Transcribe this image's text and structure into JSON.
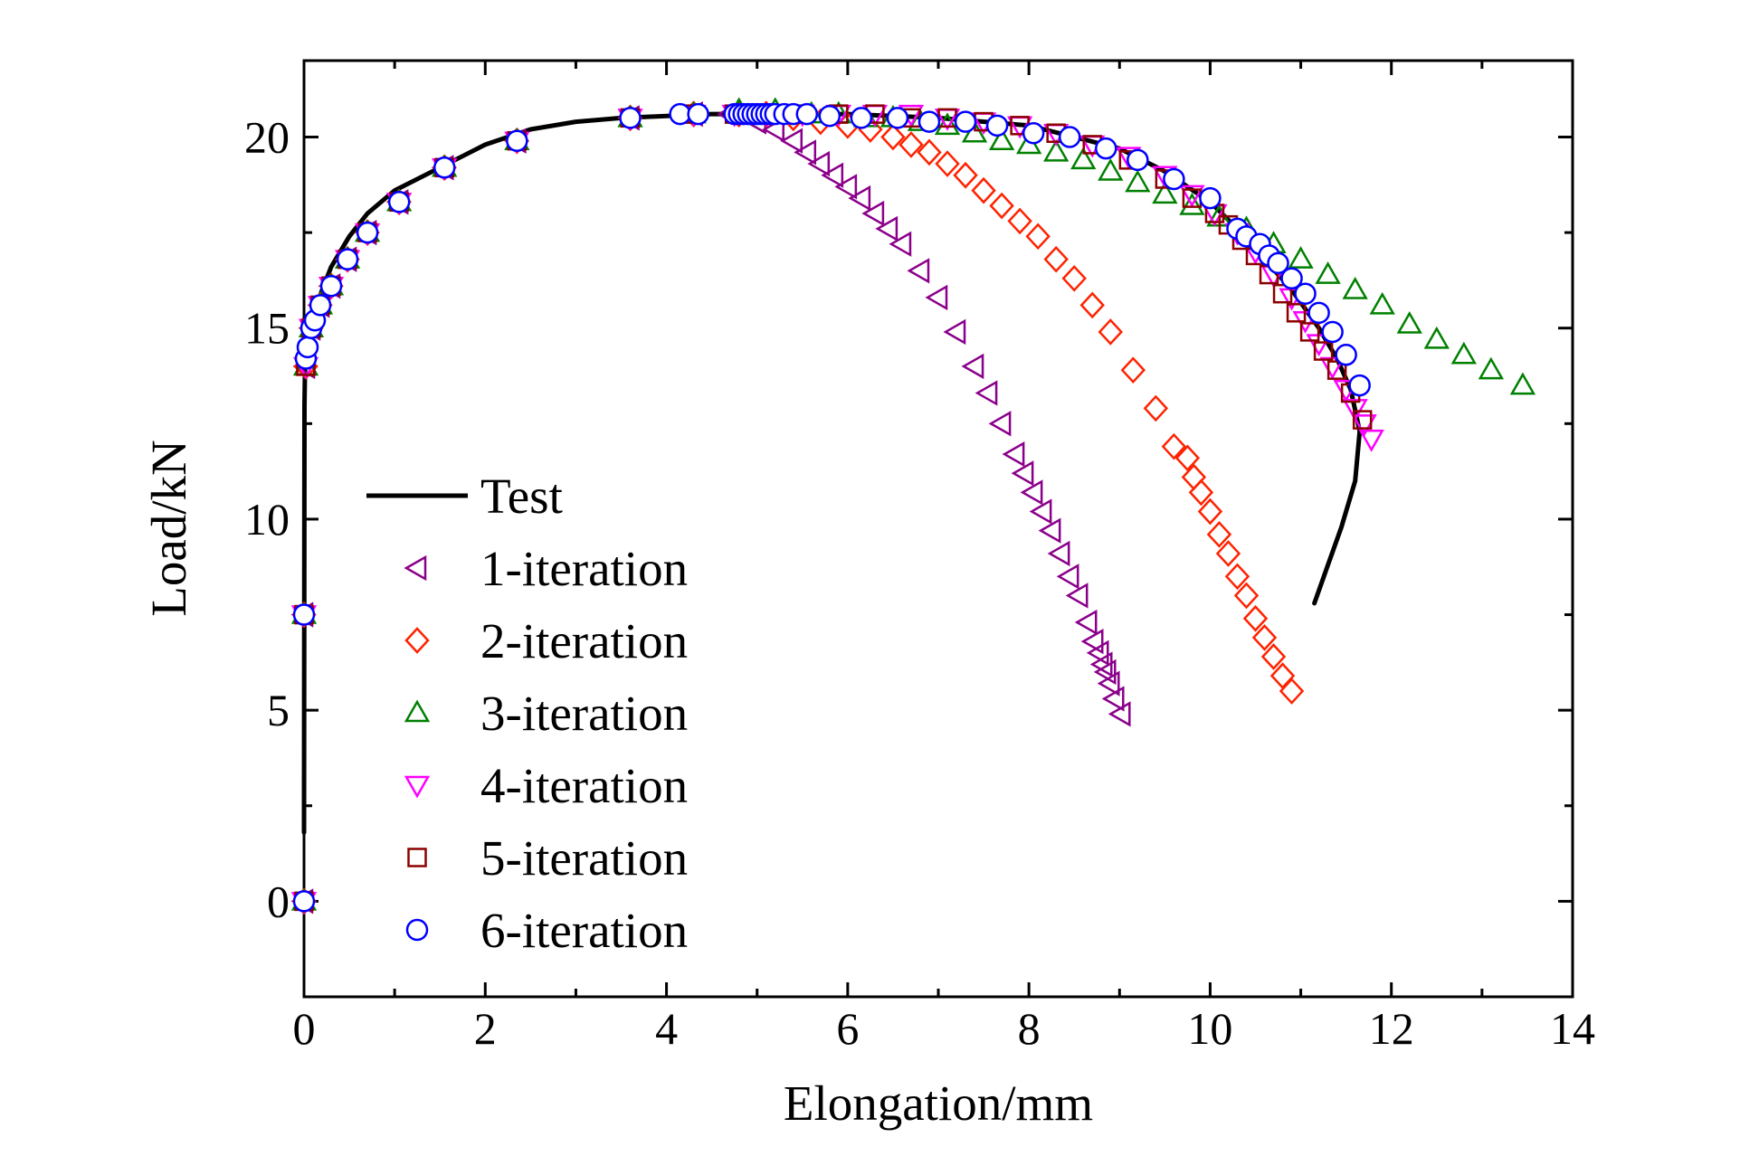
{
  "chart_data": {
    "type": "scatter",
    "title": "",
    "xlabel": "Elongation/mm",
    "ylabel": "Load/kN",
    "xlim": [
      0,
      14
    ],
    "ylim": [
      -2.5,
      22
    ],
    "xticks": [
      0,
      2,
      4,
      6,
      8,
      10,
      12,
      14
    ],
    "yticks": [
      0,
      5,
      10,
      15,
      20
    ],
    "grid": false,
    "legend_position": "lower-left",
    "series": [
      {
        "name": "Test",
        "kind": "line",
        "color": "#000000",
        "x": [
          0.0,
          0.005,
          0.01,
          0.02,
          0.05,
          0.1,
          0.2,
          0.3,
          0.5,
          0.7,
          1.0,
          1.5,
          2.0,
          2.5,
          3.0,
          3.5,
          4.0,
          4.5,
          5.0,
          6.0,
          7.0,
          8.0,
          9.0,
          9.5,
          10.0,
          10.3,
          10.6,
          10.9,
          11.2,
          11.4,
          11.55,
          11.65,
          11.6,
          11.45,
          11.3,
          11.15
        ],
        "y": [
          1.8,
          13.0,
          13.8,
          14.3,
          14.8,
          15.3,
          16.0,
          16.6,
          17.4,
          18.0,
          18.6,
          19.2,
          19.8,
          20.2,
          20.4,
          20.5,
          20.55,
          20.6,
          20.6,
          20.6,
          20.5,
          20.3,
          19.7,
          19.1,
          18.3,
          17.6,
          16.8,
          16.0,
          15.0,
          14.2,
          13.4,
          12.3,
          11.0,
          9.8,
          8.8,
          7.8
        ]
      },
      {
        "name": "1-iteration",
        "kind": "marker",
        "marker": "triangle-left",
        "color": "#8B008B",
        "x": [
          0,
          0.0,
          0.02,
          0.08,
          0.18,
          0.3,
          0.48,
          0.7,
          1.05,
          1.55,
          2.35,
          3.6,
          4.3,
          4.7,
          5.0,
          5.2,
          5.4,
          5.55,
          5.7,
          5.85,
          6.0,
          6.15,
          6.3,
          6.45,
          6.6,
          6.8,
          7.0,
          7.2,
          7.4,
          7.55,
          7.7,
          7.85,
          7.95,
          8.05,
          8.15,
          8.25,
          8.35,
          8.45,
          8.55,
          8.65,
          8.72,
          8.78,
          8.82,
          8.86,
          8.9,
          8.95,
          9.02
        ],
        "y": [
          0,
          7.5,
          14.0,
          15.0,
          15.6,
          16.1,
          16.8,
          17.5,
          18.3,
          19.2,
          19.9,
          20.5,
          20.6,
          20.6,
          20.4,
          20.2,
          19.9,
          19.6,
          19.3,
          19.0,
          18.7,
          18.4,
          18.0,
          17.6,
          17.2,
          16.5,
          15.8,
          14.9,
          14.0,
          13.3,
          12.5,
          11.7,
          11.2,
          10.7,
          10.2,
          9.7,
          9.1,
          8.5,
          8.0,
          7.3,
          6.8,
          6.5,
          6.2,
          6.0,
          5.7,
          5.3,
          4.9
        ]
      },
      {
        "name": "2-iteration",
        "kind": "marker",
        "marker": "diamond",
        "color": "#FF2200",
        "x": [
          0,
          0.0,
          0.02,
          0.08,
          0.18,
          0.3,
          0.48,
          0.7,
          1.05,
          1.55,
          2.35,
          3.6,
          4.3,
          4.8,
          5.1,
          5.4,
          5.7,
          6.0,
          6.25,
          6.5,
          6.7,
          6.9,
          7.1,
          7.3,
          7.5,
          7.7,
          7.9,
          8.1,
          8.3,
          8.5,
          8.7,
          8.9,
          9.15,
          9.4,
          9.6,
          9.75,
          9.82,
          9.9,
          10.0,
          10.1,
          10.2,
          10.3,
          10.4,
          10.5,
          10.6,
          10.7,
          10.8,
          10.9
        ],
        "y": [
          0,
          7.5,
          14.0,
          15.0,
          15.6,
          16.1,
          16.8,
          17.5,
          18.3,
          19.2,
          19.9,
          20.5,
          20.6,
          20.6,
          20.6,
          20.5,
          20.4,
          20.3,
          20.2,
          20.0,
          19.8,
          19.6,
          19.3,
          19.0,
          18.6,
          18.2,
          17.8,
          17.4,
          16.8,
          16.3,
          15.6,
          14.9,
          13.9,
          12.9,
          11.9,
          11.6,
          11.1,
          10.7,
          10.2,
          9.6,
          9.1,
          8.5,
          8.0,
          7.4,
          6.9,
          6.4,
          5.9,
          5.5
        ]
      },
      {
        "name": "3-iteration",
        "kind": "marker",
        "marker": "triangle-up",
        "color": "#008000",
        "x": [
          0,
          0.0,
          0.02,
          0.08,
          0.18,
          0.3,
          0.48,
          0.7,
          1.05,
          1.55,
          2.35,
          3.6,
          4.3,
          4.8,
          5.2,
          5.6,
          5.9,
          6.2,
          6.5,
          6.8,
          7.1,
          7.4,
          7.7,
          8.0,
          8.3,
          8.6,
          8.9,
          9.2,
          9.5,
          9.8,
          10.1,
          10.4,
          10.7,
          11.0,
          11.3,
          11.6,
          11.9,
          12.2,
          12.5,
          12.8,
          13.1,
          13.45
        ],
        "y": [
          0,
          7.5,
          14.0,
          15.0,
          15.6,
          16.1,
          16.8,
          17.5,
          18.3,
          19.2,
          19.9,
          20.5,
          20.6,
          20.7,
          20.7,
          20.6,
          20.6,
          20.5,
          20.5,
          20.4,
          20.3,
          20.1,
          19.9,
          19.8,
          19.6,
          19.4,
          19.1,
          18.8,
          18.5,
          18.2,
          17.9,
          17.6,
          17.2,
          16.8,
          16.4,
          16.0,
          15.6,
          15.1,
          14.7,
          14.3,
          13.9,
          13.5
        ]
      },
      {
        "name": "4-iteration",
        "kind": "marker",
        "marker": "triangle-down",
        "color": "#FF00FF",
        "x": [
          0,
          0.0,
          0.02,
          0.08,
          0.18,
          0.3,
          0.48,
          0.7,
          1.05,
          1.55,
          2.35,
          3.6,
          4.3,
          4.75,
          5.1,
          5.5,
          5.9,
          6.3,
          6.7,
          7.1,
          7.5,
          7.9,
          8.3,
          8.7,
          9.1,
          9.5,
          9.8,
          10.05,
          10.3,
          10.5,
          10.7,
          10.9,
          11.05,
          11.2,
          11.35,
          11.5,
          11.6,
          11.7,
          11.78
        ],
        "y": [
          0,
          7.5,
          14.0,
          15.0,
          15.6,
          16.1,
          16.8,
          17.5,
          18.3,
          19.2,
          19.9,
          20.5,
          20.6,
          20.6,
          20.6,
          20.6,
          20.6,
          20.6,
          20.6,
          20.5,
          20.4,
          20.3,
          20.1,
          19.8,
          19.5,
          19.0,
          18.5,
          18.0,
          17.5,
          17.0,
          16.4,
          15.8,
          15.2,
          14.6,
          14.0,
          13.4,
          12.9,
          12.5,
          12.1
        ]
      },
      {
        "name": "5-iteration",
        "kind": "marker",
        "marker": "square",
        "color": "#8B0000",
        "x": [
          0,
          0.0,
          0.02,
          0.08,
          0.18,
          0.3,
          0.48,
          0.7,
          1.05,
          1.55,
          2.35,
          3.6,
          4.3,
          4.75,
          5.1,
          5.5,
          5.9,
          6.3,
          6.7,
          7.1,
          7.5,
          7.9,
          8.3,
          8.7,
          9.1,
          9.5,
          9.8,
          10.05,
          10.2,
          10.35,
          10.5,
          10.65,
          10.8,
          10.95,
          11.1,
          11.25,
          11.4,
          11.55,
          11.68
        ],
        "y": [
          0,
          7.5,
          14.0,
          15.0,
          15.6,
          16.1,
          16.8,
          17.5,
          18.3,
          19.2,
          19.9,
          20.5,
          20.6,
          20.6,
          20.6,
          20.6,
          20.6,
          20.6,
          20.5,
          20.5,
          20.4,
          20.3,
          20.1,
          19.8,
          19.4,
          18.9,
          18.4,
          18.0,
          17.7,
          17.3,
          16.9,
          16.4,
          15.9,
          15.4,
          14.9,
          14.4,
          13.9,
          13.3,
          12.6
        ]
      },
      {
        "name": "6-iteration",
        "kind": "marker",
        "marker": "circle",
        "color": "#0000FF",
        "x": [
          0,
          0.0,
          0.02,
          0.04,
          0.08,
          0.12,
          0.18,
          0.3,
          0.48,
          0.7,
          1.05,
          1.55,
          2.35,
          3.6,
          4.15,
          4.35,
          4.75,
          4.8,
          4.85,
          4.9,
          4.95,
          5.0,
          5.05,
          5.1,
          5.15,
          5.2,
          5.3,
          5.4,
          5.55,
          5.8,
          6.15,
          6.55,
          6.9,
          7.3,
          7.65,
          8.05,
          8.45,
          8.85,
          9.2,
          9.6,
          10.0,
          10.3,
          10.4,
          10.55,
          10.65,
          10.75,
          10.9,
          11.05,
          11.2,
          11.35,
          11.5,
          11.65
        ],
        "y": [
          0,
          7.5,
          14.2,
          14.5,
          15.0,
          15.2,
          15.6,
          16.1,
          16.8,
          17.5,
          18.3,
          19.2,
          19.9,
          20.5,
          20.6,
          20.6,
          20.6,
          20.6,
          20.6,
          20.6,
          20.6,
          20.6,
          20.6,
          20.6,
          20.6,
          20.6,
          20.6,
          20.6,
          20.6,
          20.55,
          20.5,
          20.5,
          20.4,
          20.4,
          20.3,
          20.1,
          20.0,
          19.7,
          19.4,
          18.9,
          18.4,
          17.6,
          17.4,
          17.2,
          16.9,
          16.7,
          16.3,
          15.9,
          15.4,
          14.9,
          14.3,
          13.5
        ]
      }
    ]
  }
}
